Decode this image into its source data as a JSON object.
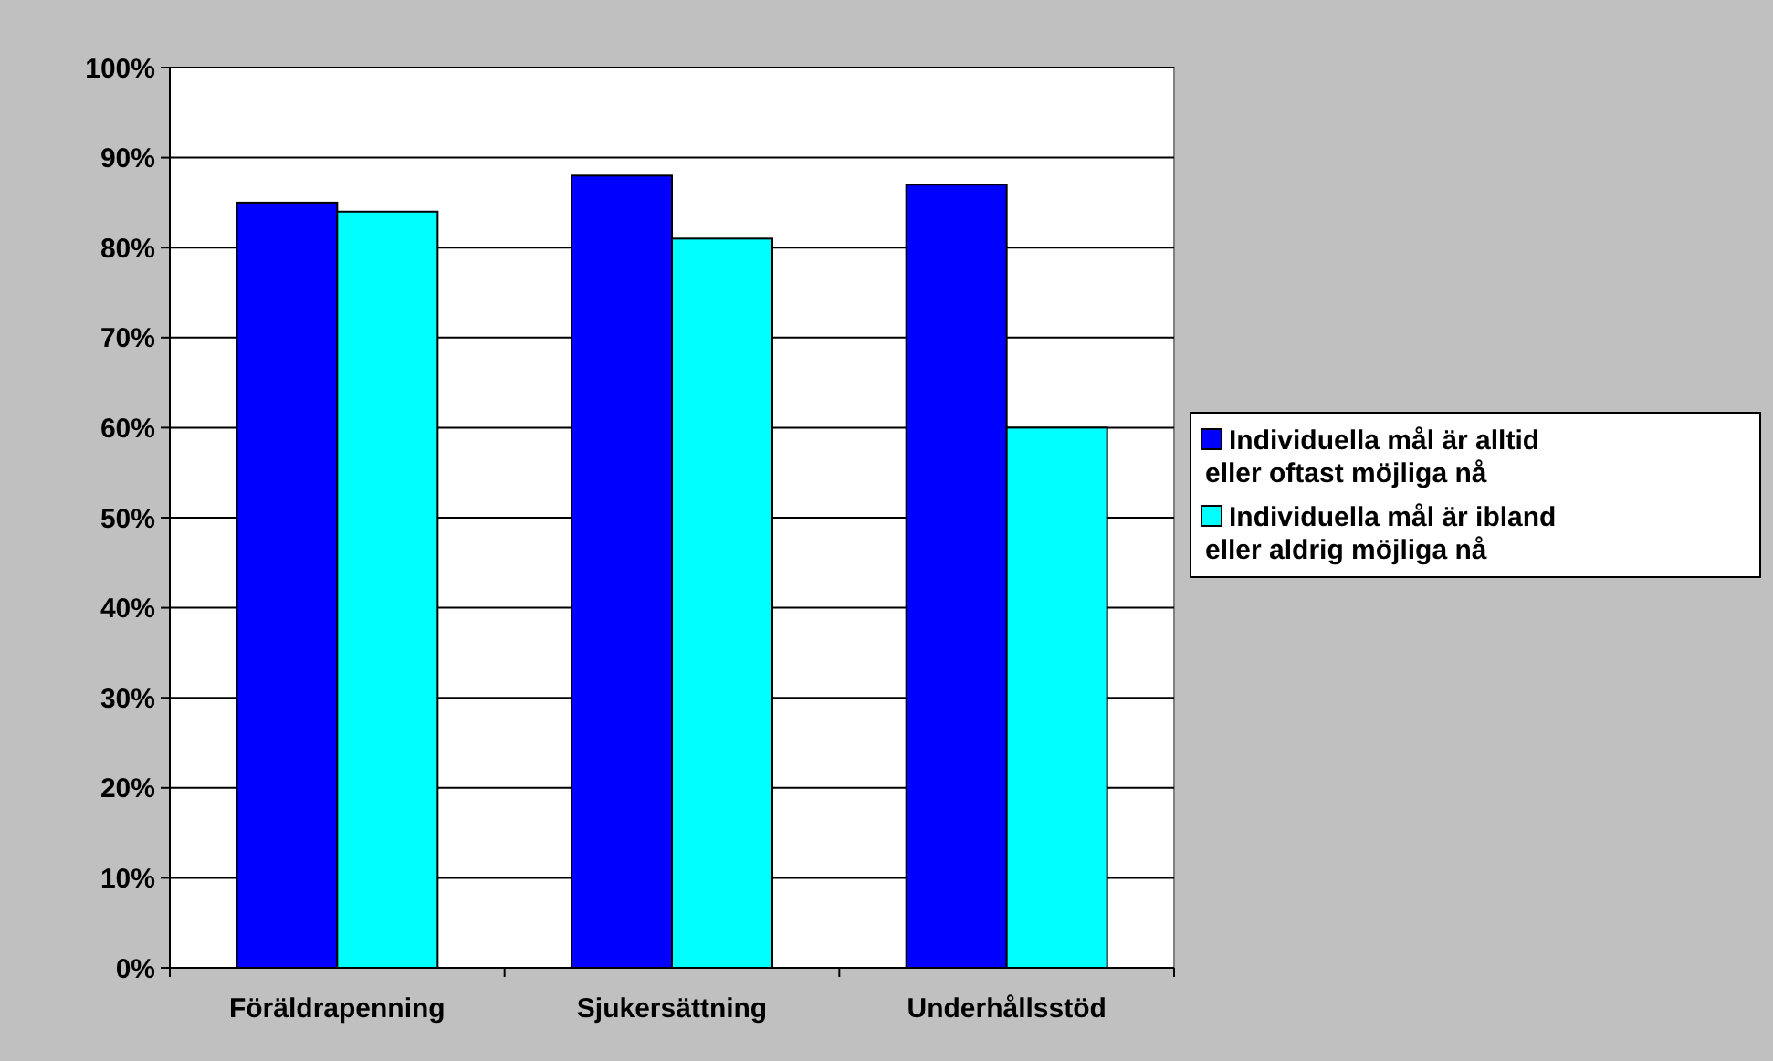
{
  "chart_data": {
    "type": "bar",
    "categories": [
      "Föräldrapenning",
      "Sjukersättning",
      "Underhållsstöd"
    ],
    "series": [
      {
        "name": "Individuella mål är alltid eller oftast möjliga nå",
        "color": "#0000ff",
        "values": [
          85,
          88,
          87
        ]
      },
      {
        "name": "Individuella mål är ibland eller aldrig möjliga nå",
        "color": "#00ffff",
        "values": [
          84,
          81,
          60
        ]
      }
    ],
    "ylim": [
      0,
      100
    ],
    "yticks": [
      {
        "value": 0,
        "label": "0%"
      },
      {
        "value": 10,
        "label": "10%"
      },
      {
        "value": 20,
        "label": "20%"
      },
      {
        "value": 30,
        "label": "30%"
      },
      {
        "value": 40,
        "label": "40%"
      },
      {
        "value": 50,
        "label": "50%"
      },
      {
        "value": 60,
        "label": "60%"
      },
      {
        "value": 70,
        "label": "70%"
      },
      {
        "value": 80,
        "label": "80%"
      },
      {
        "value": 90,
        "label": "90%"
      },
      {
        "value": 100,
        "label": "100%"
      }
    ],
    "grid": "y",
    "legend": "right"
  }
}
